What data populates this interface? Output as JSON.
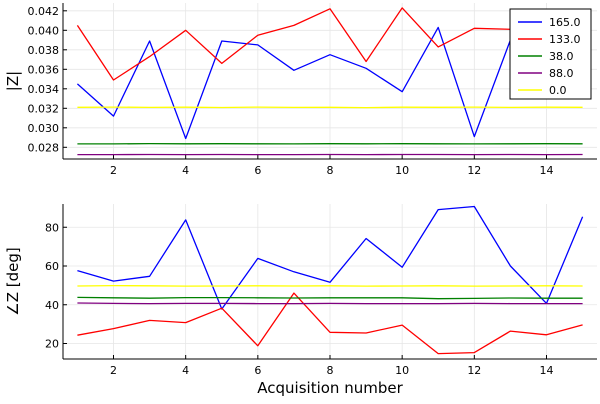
{
  "chart_data": [
    {
      "type": "line",
      "panel": "top",
      "title": "",
      "xlabel": "",
      "ylabel": "|Z|",
      "xlim": [
        0.6,
        15.4
      ],
      "ylim": [
        0.0268,
        0.0428
      ],
      "xticks": [
        2,
        4,
        6,
        8,
        10,
        12,
        14
      ],
      "yticks": [
        0.028,
        0.03,
        0.032,
        0.034,
        0.036,
        0.038,
        0.04,
        0.042
      ],
      "ytick_labels": [
        "0.028",
        "0.030",
        "0.032",
        "0.034",
        "0.036",
        "0.038",
        "0.040",
        "0.042"
      ],
      "grid": true,
      "legend": "top-right",
      "x": [
        1,
        2,
        3,
        4,
        5,
        6,
        7,
        8,
        9,
        10,
        11,
        12,
        13,
        14,
        15
      ],
      "series": [
        {
          "name": "165.0",
          "color": "#0000ff",
          "values": [
            0.0345,
            0.0312,
            0.0389,
            0.0289,
            0.0389,
            0.0385,
            0.0359,
            0.0375,
            0.0361,
            0.0337,
            0.0403,
            0.0291,
            0.039,
            0.0385,
            0.038
          ]
        },
        {
          "name": "133.0",
          "color": "#ff0000",
          "values": [
            0.0405,
            0.0349,
            0.0373,
            0.04,
            0.0366,
            0.0395,
            0.0405,
            0.0422,
            0.0368,
            0.0423,
            0.0383,
            0.0402,
            0.0401,
            0.0395,
            0.0398
          ]
        },
        {
          "name": "38.0",
          "color": "#008000",
          "values": [
            0.02835,
            0.02835,
            0.02838,
            0.02836,
            0.02837,
            0.02836,
            0.02835,
            0.02837,
            0.02836,
            0.02837,
            0.02836,
            0.02835,
            0.02836,
            0.02837,
            0.02836
          ]
        },
        {
          "name": "88.0",
          "color": "#800080",
          "values": [
            0.02725,
            0.02725,
            0.02726,
            0.02725,
            0.02726,
            0.02725,
            0.02725,
            0.02726,
            0.02725,
            0.02726,
            0.02726,
            0.02725,
            0.02726,
            0.02725,
            0.02726
          ]
        },
        {
          "name": "0.0",
          "color": "#ffff00",
          "values": [
            0.0321,
            0.03212,
            0.03209,
            0.03211,
            0.03208,
            0.03212,
            0.03209,
            0.0321,
            0.03207,
            0.03211,
            0.0321,
            0.03212,
            0.03209,
            0.03211,
            0.0321
          ]
        }
      ]
    },
    {
      "type": "line",
      "panel": "bottom",
      "title": "",
      "xlabel": "Acquisition number",
      "ylabel": "∠Z [deg]",
      "xlim": [
        0.6,
        15.4
      ],
      "ylim": [
        12,
        92
      ],
      "xticks": [
        2,
        4,
        6,
        8,
        10,
        12,
        14
      ],
      "yticks": [
        20,
        40,
        60,
        80
      ],
      "ytick_labels": [
        "20",
        "40",
        "60",
        "80"
      ],
      "grid": true,
      "legend": "none",
      "x": [
        1,
        2,
        3,
        4,
        5,
        6,
        7,
        8,
        9,
        10,
        11,
        12,
        13,
        14,
        15
      ],
      "series": [
        {
          "color": "#0000ff",
          "values": [
            57.6,
            52.2,
            54.7,
            83.8,
            37.8,
            63.9,
            57.0,
            51.6,
            74.2,
            59.4,
            89.1,
            90.7,
            60.0,
            40.7,
            85.4
          ]
        },
        {
          "color": "#ff0000",
          "values": [
            24.3,
            27.7,
            31.9,
            30.8,
            38.2,
            18.8,
            46.0,
            25.8,
            25.4,
            29.5,
            14.8,
            15.3,
            26.4,
            24.5,
            29.6
          ]
        },
        {
          "color": "#008000",
          "values": [
            43.8,
            43.6,
            43.4,
            43.7,
            43.7,
            43.6,
            43.5,
            43.6,
            43.6,
            43.6,
            43.1,
            43.3,
            43.5,
            43.4,
            43.4
          ]
        },
        {
          "color": "#800080",
          "values": [
            40.9,
            40.7,
            40.6,
            40.7,
            40.7,
            40.6,
            40.6,
            40.7,
            40.6,
            40.6,
            40.6,
            40.7,
            40.6,
            40.6,
            40.6
          ]
        },
        {
          "color": "#ffff00",
          "values": [
            49.7,
            49.9,
            49.8,
            49.6,
            49.7,
            49.8,
            49.7,
            49.8,
            49.6,
            49.7,
            49.8,
            49.6,
            49.7,
            49.8,
            49.7
          ]
        }
      ]
    }
  ]
}
